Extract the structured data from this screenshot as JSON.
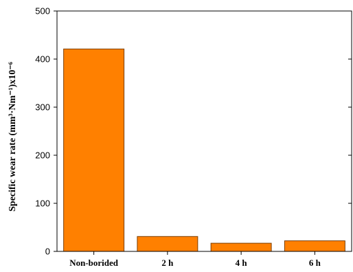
{
  "chart_data": {
    "type": "bar",
    "categories": [
      "Non-borided",
      "2 h",
      "4 h",
      "6 h"
    ],
    "values": [
      421,
      31,
      17,
      22
    ],
    "title": "",
    "xlabel": "",
    "ylabel": "Specific wear rate (mm³·Nm⁻¹)x10⁻⁶",
    "ylim": [
      0,
      500
    ],
    "yticks": [
      0,
      100,
      200,
      300,
      400,
      500
    ],
    "bar_color": "#ff8000",
    "bar_edge_color": "#7a3d00",
    "grid": false,
    "legend": "none"
  }
}
